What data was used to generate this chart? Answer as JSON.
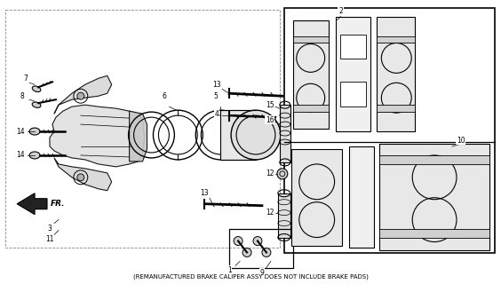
{
  "subtitle": "(REMANUFACTURED BRAKE CALIPER ASSY DOES NOT INCLUDE BRAKE PADS)",
  "bg_color": "#ffffff",
  "line_color": "#000000",
  "fig_width": 5.64,
  "fig_height": 3.2,
  "dpi": 100
}
